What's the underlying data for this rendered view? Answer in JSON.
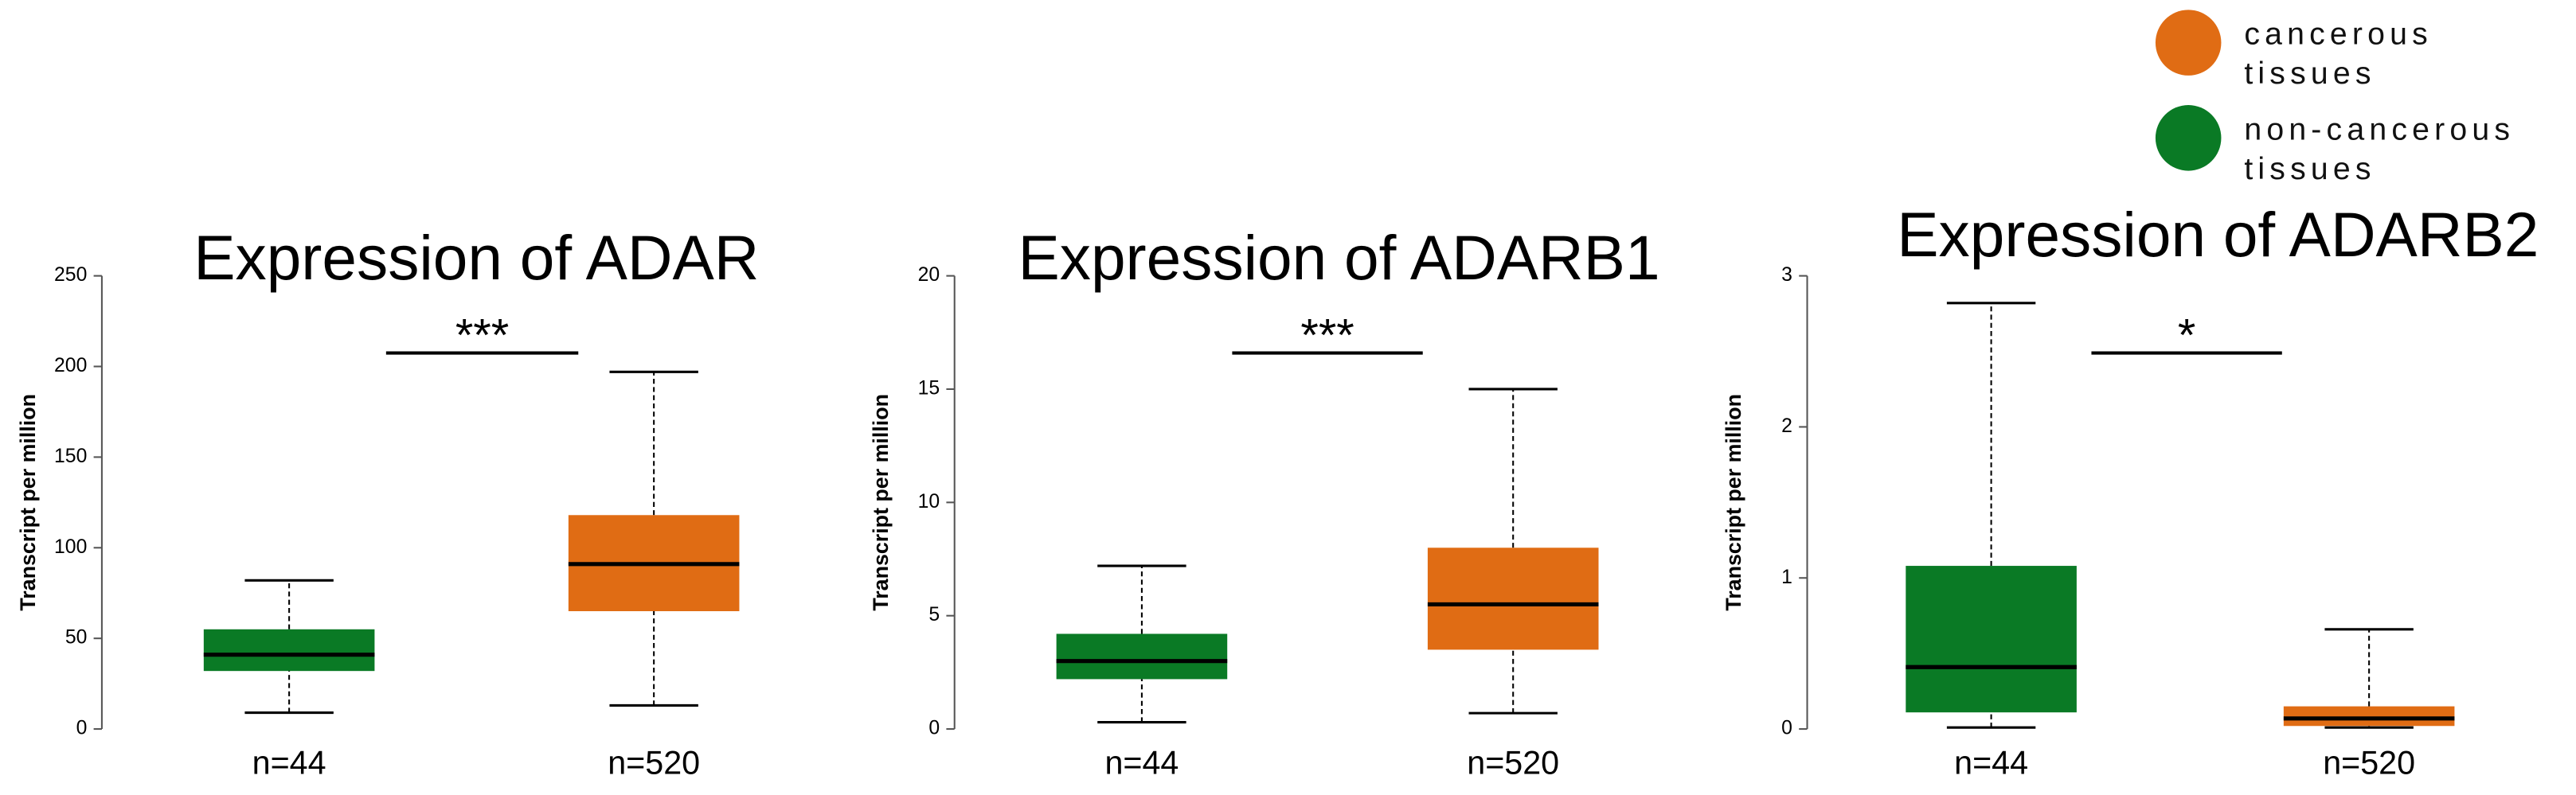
{
  "legend": [
    {
      "name": "cancerous tissues",
      "color": "#e06c14"
    },
    {
      "name": "non-cancerous tissues",
      "color": "#0a7a25"
    }
  ],
  "chart_data": [
    {
      "type": "box",
      "title": "Expression of ADAR",
      "y_label": "Transcript per million",
      "categories": [
        "n=44",
        "n=520"
      ],
      "boxes": [
        {
          "color": "#0a7a25",
          "whislo": 9,
          "q1": 32,
          "med": 41,
          "q3": 55,
          "whishi": 82
        },
        {
          "color": "#e06c14",
          "whislo": 13,
          "q1": 65,
          "med": 91,
          "q3": 118,
          "whishi": 197
        }
      ],
      "ylim": [
        0,
        250
      ],
      "yticks": [
        0,
        50,
        100,
        150,
        200,
        250
      ],
      "significance": "***"
    },
    {
      "type": "box",
      "title": "Expression of ADARB1",
      "y_label": "Transcript per million",
      "categories": [
        "n=44",
        "n=520"
      ],
      "boxes": [
        {
          "color": "#0a7a25",
          "whislo": 0.3,
          "q1": 2.2,
          "med": 3.0,
          "q3": 4.2,
          "whishi": 7.2
        },
        {
          "color": "#e06c14",
          "whislo": 0.7,
          "q1": 3.5,
          "med": 5.5,
          "q3": 8.0,
          "whishi": 15.0
        }
      ],
      "ylim": [
        0,
        20
      ],
      "yticks": [
        0,
        5,
        10,
        15,
        20
      ],
      "significance": "***"
    },
    {
      "type": "box",
      "title": "Expression of ADARB2",
      "y_label": "Transcript per million",
      "categories": [
        "n=44",
        "n=520"
      ],
      "boxes": [
        {
          "color": "#0a7a25",
          "whislo": 0.01,
          "q1": 0.11,
          "med": 0.41,
          "q3": 1.08,
          "whishi": 2.82
        },
        {
          "color": "#e06c14",
          "whislo": 0.01,
          "q1": 0.02,
          "med": 0.07,
          "q3": 0.15,
          "whishi": 0.66
        }
      ],
      "ylim": [
        0,
        3
      ],
      "yticks": [
        0,
        1,
        2,
        3
      ],
      "significance": "*"
    }
  ]
}
